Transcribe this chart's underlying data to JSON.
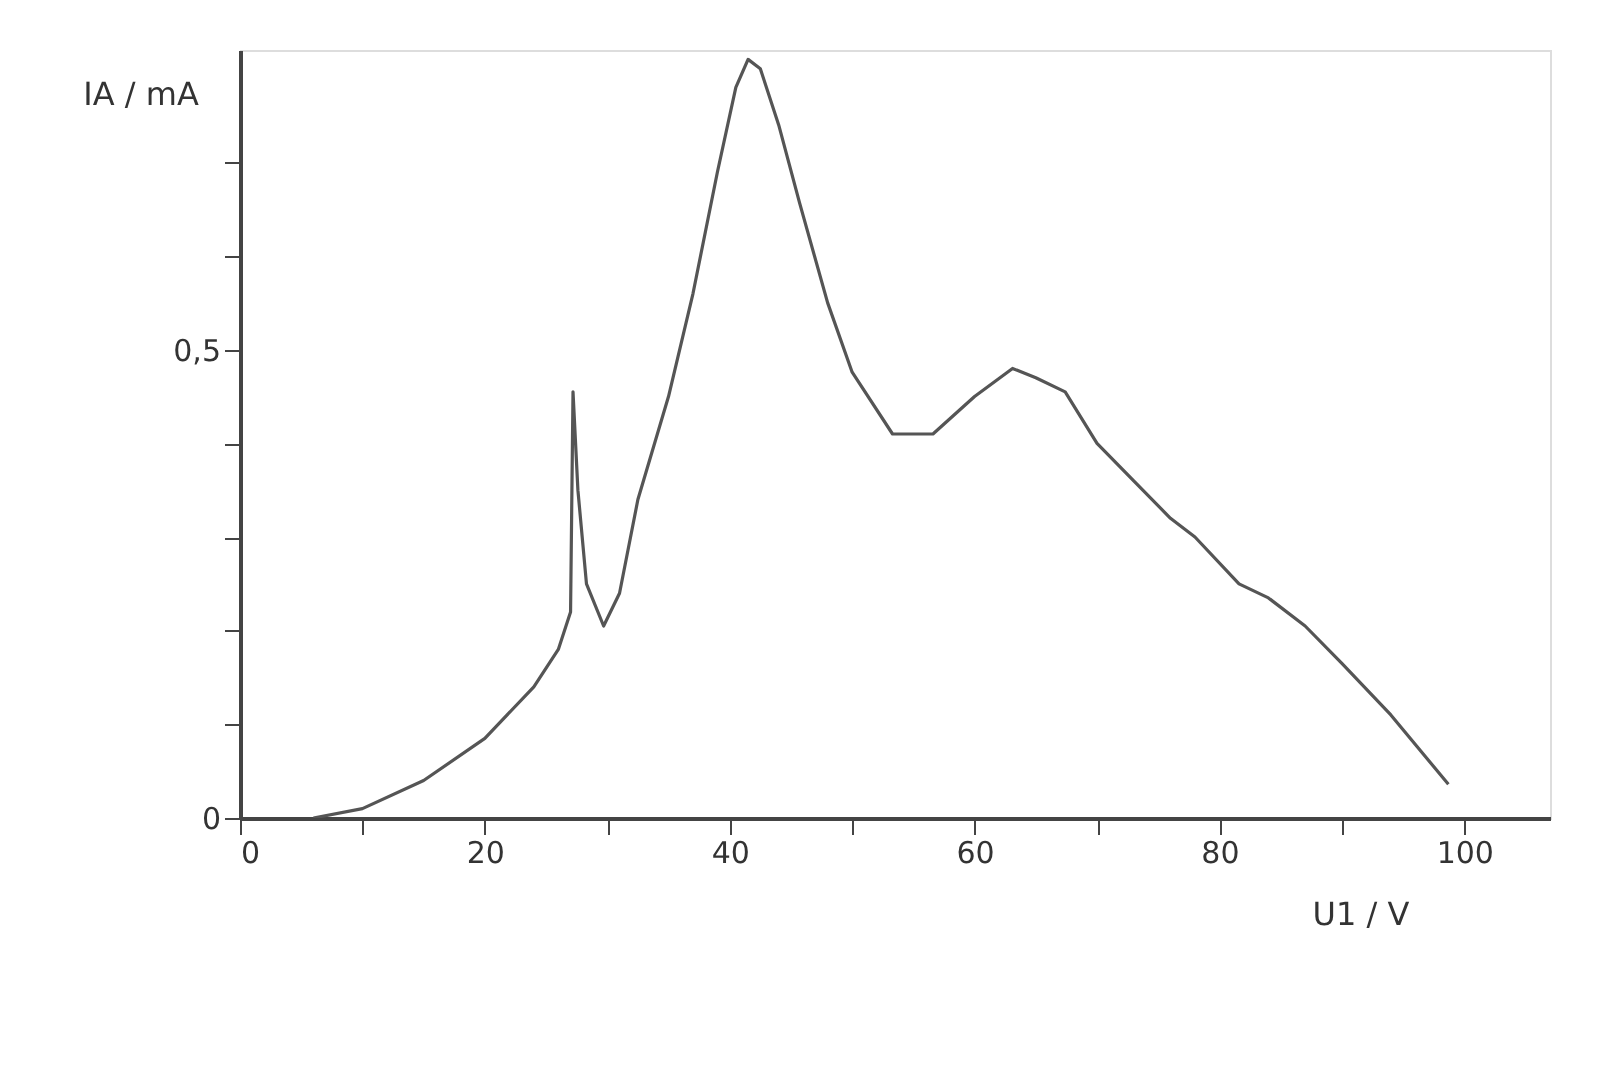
{
  "chart_data": {
    "type": "line",
    "xlabel": "U1 / V",
    "ylabel": "IA / mA",
    "x": [
      6,
      10,
      15,
      20,
      24,
      26,
      27,
      27.2,
      27.6,
      28.3,
      29.7,
      31,
      32.5,
      35,
      37,
      39,
      40.5,
      41.5,
      42.5,
      44,
      45.7,
      48,
      50,
      53.3,
      56.6,
      60,
      63.1,
      65,
      67.4,
      70,
      73,
      76,
      78,
      81.6,
      84,
      87,
      90,
      94,
      98.7
    ],
    "series": [
      {
        "color": "#555555",
        "values": [
          0,
          0.01,
          0.04,
          0.085,
          0.14,
          0.18,
          0.22,
          0.455,
          0.35,
          0.25,
          0.205,
          0.24,
          0.34,
          0.45,
          0.56,
          0.69,
          0.78,
          0.81,
          0.8,
          0.74,
          0.657,
          0.55,
          0.476,
          0.41,
          0.41,
          0.45,
          0.48,
          0.47,
          0.455,
          0.4,
          0.36,
          0.32,
          0.3,
          0.25,
          0.235,
          0.205,
          0.165,
          0.11,
          0.036
        ]
      }
    ],
    "xlim": [
      0,
      107
    ],
    "ylim": [
      0,
      0.82
    ],
    "xticks": [
      0,
      {
        "value": 10,
        "label": null
      },
      20,
      {
        "value": 30,
        "label": null
      },
      40,
      {
        "value": 50,
        "label": null
      },
      60,
      {
        "value": 70,
        "label": null
      },
      80,
      {
        "value": 90,
        "label": null
      },
      100
    ],
    "yticks": [
      0,
      {
        "value": 0.1,
        "label": null
      },
      {
        "value": 0.2,
        "label": null
      },
      {
        "value": 0.3,
        "label": null
      },
      {
        "value": 0.4,
        "label": null
      },
      {
        "value": 0.5,
        "label": "0,5"
      },
      {
        "value": 0.6,
        "label": null
      },
      {
        "value": 0.7,
        "label": null
      }
    ],
    "grid": false,
    "line_style": "solid",
    "marker": "none"
  }
}
